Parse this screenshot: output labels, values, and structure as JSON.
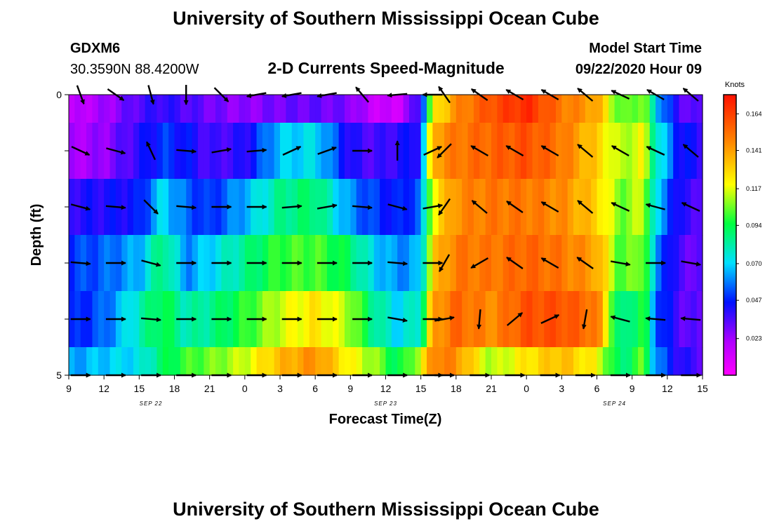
{
  "page": {
    "title_top": "University of Southern Mississippi Ocean Cube",
    "title_bottom": "University of Southern Mississippi Ocean Cube",
    "station_id": "GDXM6",
    "station_coords": "30.3590N 88.4200W",
    "plot_title": "2-D Currents Speed-Magnitude",
    "model_start_label": "Model Start Time",
    "model_start_value": "09/22/2020 Hour 09"
  },
  "chart_data": {
    "type": "heatmap",
    "title": "2-D Currents Speed-Magnitude",
    "xlabel": "Forecast Time(Z)",
    "ylabel": "Depth (ft)",
    "x_tick_labels": [
      "9",
      "12",
      "15",
      "18",
      "21",
      "0",
      "3",
      "6",
      "9",
      "12",
      "15",
      "18",
      "21",
      "0",
      "3",
      "6",
      "9",
      "12",
      "15"
    ],
    "x_hours_start": 0,
    "x_hours_end": 54,
    "date_labels": [
      {
        "text": "SEP 22",
        "hour": 7
      },
      {
        "text": "SEP 23",
        "hour": 27
      },
      {
        "text": "SEP 24",
        "hour": 46.5
      }
    ],
    "y_tick_labels": [
      {
        "text": "0",
        "depth": 0
      },
      {
        "text": "",
        "depth": 1
      },
      {
        "text": "",
        "depth": 2
      },
      {
        "text": "",
        "depth": 3
      },
      {
        "text": "",
        "depth": 4
      },
      {
        "text": "5",
        "depth": 5
      }
    ],
    "ylim": [
      0,
      5
    ],
    "depth_rows": [
      0,
      1,
      2,
      3,
      4,
      5
    ],
    "colorbar": {
      "unit": "Knots",
      "min": 0.0,
      "max": 0.176,
      "tick_labels": [
        "0.023",
        "0.047",
        "0.070",
        "0.094",
        "0.117",
        "0.141",
        "0.164"
      ],
      "tick_values": [
        0.023,
        0.047,
        0.07,
        0.094,
        0.117,
        0.141,
        0.164
      ]
    },
    "speed_profile": [
      {
        "hour": 0,
        "speeds": [
          0.015,
          0.02,
          0.04,
          0.05,
          0.045,
          0.062
        ]
      },
      {
        "hour": 3,
        "speeds": [
          0.022,
          0.025,
          0.042,
          0.055,
          0.055,
          0.068
        ]
      },
      {
        "hour": 6,
        "speeds": [
          0.035,
          0.04,
          0.045,
          0.065,
          0.08,
          0.072
        ]
      },
      {
        "hour": 8,
        "speeds": [
          0.04,
          0.05,
          0.072,
          0.09,
          0.095,
          0.09
        ]
      },
      {
        "hour": 10,
        "speeds": [
          0.035,
          0.045,
          0.055,
          0.06,
          0.08,
          0.1
        ]
      },
      {
        "hour": 12,
        "speeds": [
          0.03,
          0.035,
          0.048,
          0.07,
          0.085,
          0.105
        ]
      },
      {
        "hour": 15,
        "speeds": [
          0.025,
          0.04,
          0.065,
          0.085,
          0.098,
          0.115
        ]
      },
      {
        "hour": 18,
        "speeds": [
          0.03,
          0.068,
          0.085,
          0.1,
          0.115,
          0.135
        ]
      },
      {
        "hour": 21,
        "speeds": [
          0.032,
          0.072,
          0.09,
          0.102,
          0.125,
          0.145
        ]
      },
      {
        "hour": 24,
        "speeds": [
          0.028,
          0.04,
          0.06,
          0.09,
          0.11,
          0.12
        ]
      },
      {
        "hour": 26,
        "speeds": [
          0.015,
          0.035,
          0.05,
          0.07,
          0.085,
          0.11
        ]
      },
      {
        "hour": 28,
        "speeds": [
          0.012,
          0.04,
          0.045,
          0.06,
          0.07,
          0.09
        ]
      },
      {
        "hour": 30,
        "speeds": [
          0.04,
          0.045,
          0.055,
          0.065,
          0.08,
          0.115
        ]
      },
      {
        "hour": 31,
        "speeds": [
          0.12,
          0.14,
          0.12,
          0.13,
          0.14,
          0.15
        ]
      },
      {
        "hour": 33,
        "speeds": [
          0.145,
          0.15,
          0.145,
          0.15,
          0.155,
          0.145
        ]
      },
      {
        "hour": 36,
        "speeds": [
          0.16,
          0.155,
          0.15,
          0.15,
          0.145,
          0.11
        ]
      },
      {
        "hour": 39,
        "speeds": [
          0.17,
          0.16,
          0.15,
          0.155,
          0.16,
          0.125
        ]
      },
      {
        "hour": 42,
        "speeds": [
          0.15,
          0.15,
          0.145,
          0.15,
          0.16,
          0.135
        ]
      },
      {
        "hour": 45,
        "speeds": [
          0.14,
          0.13,
          0.13,
          0.14,
          0.15,
          0.12
        ]
      },
      {
        "hour": 47,
        "speeds": [
          0.1,
          0.11,
          0.105,
          0.1,
          0.08,
          0.085
        ]
      },
      {
        "hour": 49,
        "speeds": [
          0.11,
          0.12,
          0.115,
          0.11,
          0.1,
          0.105
        ]
      },
      {
        "hour": 50,
        "speeds": [
          0.07,
          0.08,
          0.07,
          0.06,
          0.055,
          0.06
        ]
      },
      {
        "hour": 52,
        "speeds": [
          0.035,
          0.045,
          0.04,
          0.035,
          0.035,
          0.04
        ]
      },
      {
        "hour": 54,
        "speeds": [
          0.03,
          0.04,
          0.035,
          0.03,
          0.03,
          0.035
        ]
      }
    ],
    "vector_hours": [
      1,
      4,
      7,
      10,
      13,
      16,
      19,
      22,
      25,
      28,
      31,
      32,
      35,
      38,
      41,
      44,
      47,
      50,
      53
    ],
    "vector_directions_deg": [
      [
        -70,
        -35,
        -75,
        -90,
        -45,
        -170,
        -170,
        -170,
        130,
        -175,
        180,
        125,
        145,
        150,
        150,
        140,
        155,
        150,
        140
      ],
      [
        -25,
        -15,
        115,
        -5,
        10,
        5,
        25,
        20,
        0,
        90,
        25,
        -135,
        150,
        150,
        150,
        140,
        150,
        155,
        140
      ],
      [
        -15,
        -5,
        -45,
        -5,
        0,
        0,
        5,
        10,
        -5,
        -15,
        10,
        -125,
        140,
        145,
        150,
        140,
        155,
        165,
        155
      ],
      [
        -5,
        0,
        -15,
        0,
        0,
        0,
        0,
        0,
        0,
        -5,
        0,
        -120,
        -150,
        145,
        150,
        145,
        -10,
        0,
        -10
      ],
      [
        0,
        0,
        -5,
        0,
        0,
        0,
        0,
        0,
        0,
        -10,
        0,
        10,
        -95,
        40,
        25,
        -100,
        165,
        175,
        175
      ],
      [
        0,
        0,
        0,
        0,
        0,
        0,
        0,
        0,
        0,
        0,
        0,
        0,
        0,
        0,
        0,
        0,
        0,
        0,
        0
      ]
    ]
  }
}
